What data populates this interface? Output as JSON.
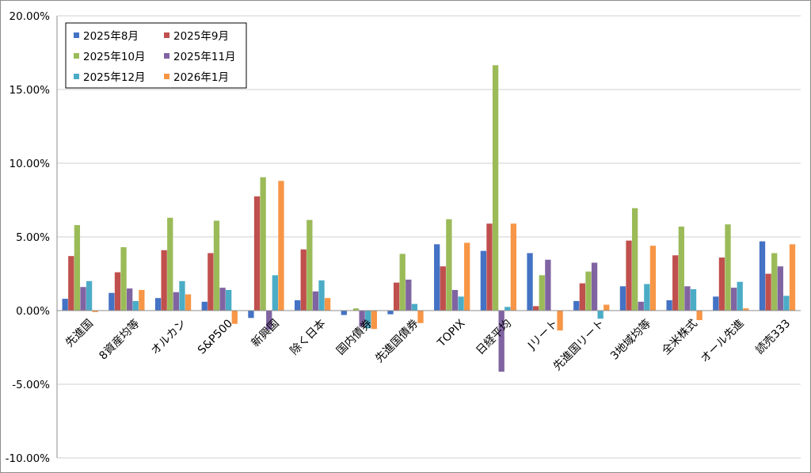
{
  "chart_data": {
    "type": "bar",
    "ylim": [
      -0.1,
      0.2
    ],
    "y_ticks": [
      "20.00%",
      "15.00%",
      "10.00%",
      "5.00%",
      "0.00%",
      "-5.00%",
      "-10.00%"
    ],
    "y_tick_values": [
      0.2,
      0.15,
      0.1,
      0.05,
      0.0,
      -0.05,
      -0.1
    ],
    "grid": "horizontal",
    "legend_position": "top-left",
    "categories": [
      "先進国",
      "8資産均等",
      "オルカン",
      "S&P500",
      "新興国",
      "除く日本",
      "国内債券",
      "先進国債券",
      "TOPIX",
      "日経平均",
      "Jリート",
      "先進国リート",
      "3地域均等",
      "全米株式",
      "オール先進",
      "読売333"
    ],
    "series": [
      {
        "name": "2025年8月",
        "color": "#4472c4",
        "values": [
          0.008,
          0.012,
          0.0085,
          0.006,
          -0.005,
          0.007,
          -0.003,
          -0.0025,
          0.045,
          0.0405,
          0.039,
          0.0065,
          0.0165,
          0.007,
          0.0095,
          0.047
        ]
      },
      {
        "name": "2025年9月",
        "color": "#c0504d",
        "values": [
          0.037,
          0.026,
          0.041,
          0.039,
          0.0775,
          0.0415,
          0.0,
          0.019,
          0.03,
          0.059,
          0.003,
          0.0185,
          0.0475,
          0.0375,
          0.036,
          0.025
        ]
      },
      {
        "name": "2025年10月",
        "color": "#9bbb59",
        "values": [
          0.058,
          0.043,
          0.063,
          0.061,
          0.0905,
          0.0615,
          0.0015,
          0.0385,
          0.062,
          0.1665,
          0.024,
          0.0265,
          0.0695,
          0.057,
          0.0585,
          0.039
        ]
      },
      {
        "name": "2025年11月",
        "color": "#8064a2",
        "values": [
          0.016,
          0.015,
          0.0125,
          0.0155,
          -0.013,
          0.013,
          -0.011,
          0.021,
          0.014,
          -0.0415,
          0.0345,
          0.0325,
          0.006,
          0.0165,
          0.0155,
          0.03
        ]
      },
      {
        "name": "2025年12月",
        "color": "#4bacc6",
        "values": [
          0.02,
          0.0065,
          0.02,
          0.014,
          0.024,
          0.0205,
          -0.012,
          0.0045,
          0.0095,
          0.0025,
          0.0,
          -0.0055,
          0.018,
          0.0145,
          0.0195,
          0.01
        ]
      },
      {
        "name": "2026年1月",
        "color": "#f79646",
        "values": [
          -0.001,
          0.014,
          0.011,
          -0.009,
          0.088,
          0.0085,
          -0.0125,
          -0.0085,
          0.046,
          0.059,
          -0.0135,
          0.004,
          0.044,
          -0.0065,
          0.0015,
          0.045
        ]
      }
    ]
  }
}
